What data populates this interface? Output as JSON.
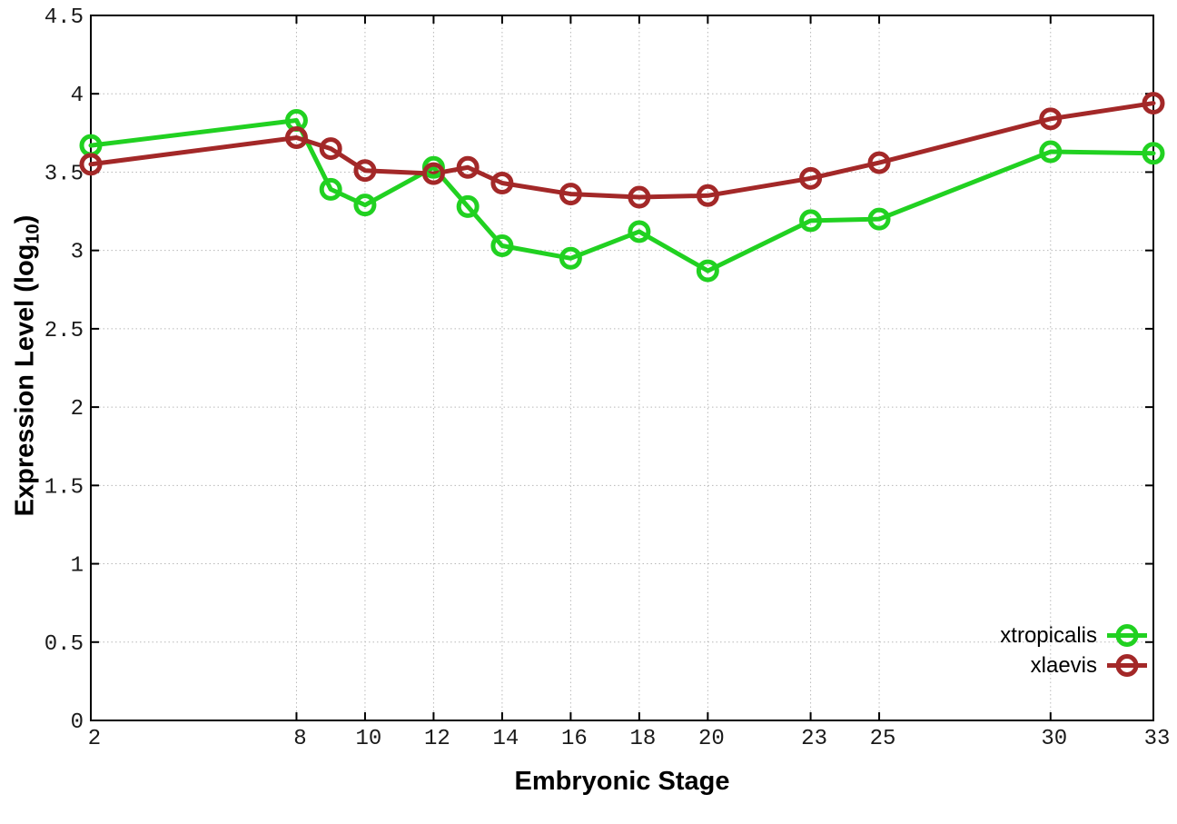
{
  "figure": {
    "background": "#ffffff",
    "border_color": "#000000",
    "grid_color": "#b8b8b8",
    "tick_label_color": "#1a1a1a"
  },
  "chart_data": {
    "type": "line",
    "title": "",
    "xlabel": "Embryonic Stage",
    "ylabel": "Expression Level (log10)",
    "ylabel_parts": {
      "main": "Expression Level (log",
      "sub": "10",
      "end": ")"
    },
    "x": [
      2,
      8,
      9,
      10,
      12,
      13,
      14,
      16,
      18,
      20,
      23,
      25,
      30,
      33
    ],
    "series": [
      {
        "name": "xtropicalis",
        "color": "#21d121",
        "values": [
          3.67,
          3.83,
          3.39,
          3.29,
          3.53,
          3.28,
          3.03,
          2.95,
          3.12,
          2.87,
          3.19,
          3.2,
          3.63,
          3.62
        ]
      },
      {
        "name": "xlaevis",
        "color": "#a32828",
        "values": [
          3.55,
          3.72,
          3.65,
          3.51,
          3.49,
          3.53,
          3.43,
          3.36,
          3.34,
          3.35,
          3.46,
          3.56,
          3.84,
          3.94
        ]
      }
    ],
    "x_ticks": [
      2,
      8,
      10,
      12,
      14,
      16,
      18,
      20,
      23,
      25,
      30,
      33
    ],
    "y_ticks": [
      0,
      0.5,
      1,
      1.5,
      2,
      2.5,
      3,
      3.5,
      4,
      4.5
    ],
    "xlim": [
      2,
      33
    ],
    "ylim": [
      0,
      4.5
    ],
    "grid": true,
    "marker": "open-circle",
    "legend_position": "bottom-right"
  }
}
